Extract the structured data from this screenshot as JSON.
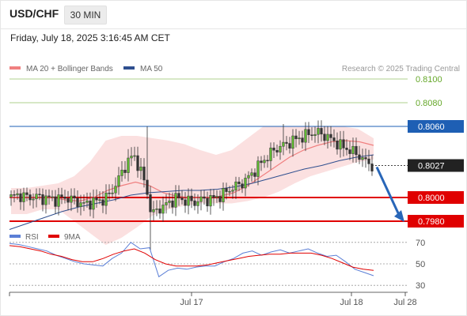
{
  "header": {
    "symbol": "USD/CHF",
    "timeframe": "30 MIN",
    "date": "Friday, July 18, 2025 3:16:45 AM CET"
  },
  "legend": {
    "items": [
      {
        "label": "MA 20 + Bollinger Bands",
        "color": "#f08080"
      },
      {
        "label": "MA 50",
        "color": "#2f4f8f"
      }
    ],
    "source": "Research © 2025 Trading Central"
  },
  "rsi_legend": {
    "items": [
      {
        "label": "RSI",
        "color": "#5b7fd6"
      },
      {
        "label": "9MA",
        "color": "#e00000"
      }
    ]
  },
  "chart_data": [
    {
      "type": "candlestick",
      "title": "USD/CHF 30 MIN",
      "ylim": [
        0.796,
        0.812
      ],
      "x_ticks": [
        "Jul 17",
        "Jul 18",
        "Jul 28"
      ],
      "last_price": 0.8027,
      "levels": [
        {
          "value": 0.81,
          "label": "0.8100",
          "kind": "resistance",
          "color": "#66a82a"
        },
        {
          "value": 0.808,
          "label": "0.8080",
          "kind": "resistance",
          "color": "#66a82a"
        },
        {
          "value": 0.806,
          "label": "0.8060",
          "kind": "pivot",
          "color": "#1e5fb4"
        },
        {
          "value": 0.8027,
          "label": "0.8027",
          "kind": "last",
          "color": "#222222"
        },
        {
          "value": 0.8,
          "label": "0.8000",
          "kind": "support",
          "color": "#e00000"
        },
        {
          "value": 0.798,
          "label": "0.7980",
          "kind": "support",
          "color": "#e00000"
        }
      ],
      "forecast": {
        "direction": "down",
        "target": 0.798
      },
      "close_path": [
        0.8,
        0.8002,
        0.8001,
        0.8,
        0.8001,
        0.7999,
        0.8,
        0.7998,
        0.7999,
        0.8,
        0.7998,
        0.7996,
        0.7994,
        0.7996,
        0.7997,
        0.7998,
        0.8002,
        0.801,
        0.802,
        0.803,
        0.8036,
        0.8025,
        0.801,
        0.7985,
        0.799,
        0.7993,
        0.7996,
        0.8,
        0.7998,
        0.7997,
        0.7996,
        0.7998,
        0.7998,
        0.7999,
        0.8001,
        0.8004,
        0.8008,
        0.801,
        0.8013,
        0.8018,
        0.8024,
        0.803,
        0.8035,
        0.804,
        0.8043,
        0.8045,
        0.8048,
        0.805,
        0.8052,
        0.8054,
        0.8055,
        0.8053,
        0.805,
        0.8047,
        0.8043,
        0.8041,
        0.8038,
        0.8035,
        0.803,
        0.8027
      ],
      "ma20_path": [
        0.8,
        0.8,
        0.8,
        0.8,
        0.7998,
        0.7997,
        0.8,
        0.8006,
        0.801,
        0.8013,
        0.801,
        0.8004,
        0.8001,
        0.8,
        0.8,
        0.8001,
        0.8004,
        0.801,
        0.8018,
        0.8026,
        0.8034,
        0.804,
        0.8044,
        0.8047,
        0.8048,
        0.8047,
        0.8044
      ],
      "ma50_path": [
        0.7973,
        0.7978,
        0.7983,
        0.7988,
        0.7992,
        0.7995,
        0.7998,
        0.8002,
        0.8004,
        0.8005,
        0.8006,
        0.8006,
        0.8007,
        0.8009,
        0.8012,
        0.8016,
        0.802,
        0.8024,
        0.8027,
        0.8031,
        0.8034,
        0.8036
      ]
    },
    {
      "type": "line",
      "title": "RSI",
      "ylim": [
        25,
        75
      ],
      "y_ticks": [
        "70",
        "50",
        "30"
      ],
      "series": [
        {
          "name": "RSI",
          "values": [
            69,
            68,
            66,
            64,
            62,
            58,
            55,
            52,
            50,
            49,
            48,
            55,
            60,
            70,
            64,
            65,
            38,
            44,
            46,
            45,
            47,
            48,
            48,
            52,
            55,
            60,
            62,
            58,
            61,
            63,
            60,
            62,
            64,
            60,
            57,
            58,
            52,
            45,
            42,
            39
          ]
        },
        {
          "name": "9MA",
          "values": [
            67,
            66,
            64,
            62,
            59,
            57,
            54,
            52,
            52,
            55,
            59,
            62,
            64,
            60,
            54,
            50,
            48,
            48,
            48,
            49,
            51,
            53,
            55,
            57,
            58,
            59,
            59,
            60,
            60,
            60,
            58,
            55,
            51,
            47,
            45,
            44
          ]
        }
      ]
    }
  ]
}
